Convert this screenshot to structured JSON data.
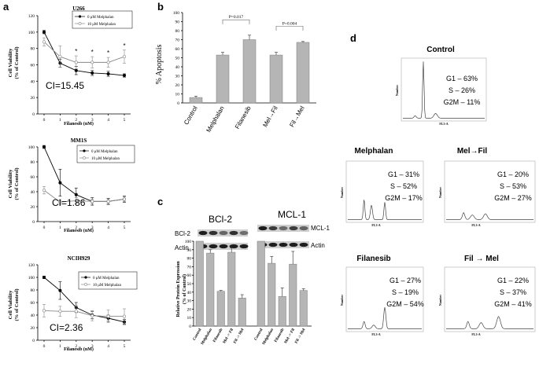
{
  "panels": {
    "a": "a",
    "b": "b",
    "c": "c",
    "d": "d"
  },
  "chart_data": [
    {
      "id": "u266",
      "type": "line",
      "title": "U266",
      "xlabel": "Filanesib (nM)",
      "ylabel": "Cell Viability",
      "ylabel2": "(% of Control)",
      "x": [
        0,
        1,
        2,
        3,
        4,
        5
      ],
      "ylim": [
        0,
        120
      ],
      "yticks": [
        0,
        20,
        40,
        60,
        80,
        100,
        120
      ],
      "series": [
        {
          "name": "0 μM Melphalan",
          "values": [
            100,
            62,
            53,
            50,
            49,
            47
          ],
          "errors": [
            2,
            5,
            5,
            3,
            3,
            2
          ],
          "marker": "filled"
        },
        {
          "name": "10 μM Melphalan",
          "values": [
            88,
            70,
            63,
            63,
            63,
            70
          ],
          "errors": [
            5,
            13,
            8,
            7,
            6,
            8
          ],
          "marker": "open"
        }
      ],
      "significance": [
        2,
        3,
        4,
        5
      ],
      "significance_label": "*",
      "annotation": "CI=15.45"
    },
    {
      "id": "mm1s",
      "type": "line",
      "title": "MM1S",
      "xlabel": "Filanesib (nM)",
      "ylabel": "Cell Viability",
      "ylabel2": "(% of Control)",
      "x": [
        0,
        1,
        2,
        3,
        4,
        5
      ],
      "ylim": [
        0,
        100
      ],
      "yticks": [
        0,
        20,
        40,
        60,
        80,
        100
      ],
      "series": [
        {
          "name": "0 μM Melphalan",
          "values": [
            100,
            52,
            36,
            27,
            27,
            30
          ],
          "errors": [
            2,
            18,
            9,
            5,
            4,
            4
          ],
          "marker": "filled"
        },
        {
          "name": "10 μM Melphalan",
          "values": [
            42,
            26,
            28,
            27,
            27,
            30
          ],
          "errors": [
            5,
            3,
            4,
            3,
            3,
            3
          ],
          "marker": "open"
        }
      ],
      "annotation": "CI=1.86"
    },
    {
      "id": "nci",
      "type": "line",
      "title": "NCIH929",
      "xlabel": "Filanesib (nM)",
      "ylabel": "Cell Viability",
      "ylabel2": "(% of Control)",
      "x": [
        0,
        1,
        2,
        3,
        4,
        5
      ],
      "ylim": [
        0,
        120
      ],
      "yticks": [
        0,
        20,
        40,
        60,
        80,
        100,
        120
      ],
      "series": [
        {
          "name": "0 μM Melphalan",
          "values": [
            100,
            79,
            52,
            40,
            35,
            29
          ],
          "errors": [
            2,
            14,
            8,
            6,
            5,
            4
          ],
          "marker": "filled"
        },
        {
          "name": "10 μM Melphalan",
          "values": [
            47,
            46,
            46,
            39,
            38,
            38
          ],
          "errors": [
            10,
            8,
            10,
            8,
            10,
            12
          ],
          "marker": "open"
        }
      ],
      "annotation": "CI=2.36"
    },
    {
      "id": "apoptosis",
      "type": "bar",
      "ylabel": "% Apoptosis",
      "categories": [
        "Control",
        "Melphalan",
        "Filanesib",
        "Mel→Fil",
        "Fil→Mel"
      ],
      "values": [
        6,
        53,
        70,
        53,
        67
      ],
      "errors": [
        1.5,
        3,
        5,
        3,
        1
      ],
      "ylim": [
        0,
        100
      ],
      "yticks": [
        0,
        10,
        20,
        30,
        40,
        50,
        60,
        70,
        80,
        90,
        100
      ],
      "comparisons": [
        {
          "from": 1,
          "to": 2,
          "label": "P=0.017"
        },
        {
          "from": 3,
          "to": 4,
          "label": "P=0.004"
        }
      ]
    },
    {
      "id": "protein",
      "type": "bar",
      "ylabel": "Relative Protein Expression",
      "ylabel2": "(% of Control)",
      "ylim": [
        0,
        100
      ],
      "yticks": [
        0,
        10,
        20,
        30,
        40,
        50,
        60,
        70,
        80,
        90,
        100
      ],
      "groups": [
        {
          "name": "BCl-2",
          "categories": [
            "Control",
            "Melphalan",
            "Filanesib",
            "Mel -> Fil",
            "Fil -> Mel"
          ],
          "values": [
            100,
            86,
            41,
            87,
            33
          ],
          "errors": [
            0,
            4,
            1,
            5,
            4
          ]
        },
        {
          "name": "MCL-1",
          "categories": [
            "Control",
            "Melphalan",
            "Filanesib",
            "Mel -> Fil",
            "Fil -> Mel"
          ],
          "values": [
            100,
            74,
            35,
            73,
            42
          ],
          "errors": [
            0,
            8,
            10,
            15,
            2
          ]
        }
      ]
    }
  ],
  "blots": {
    "bcl2_title": "BCl-2",
    "mcl1_title": "MCL-1",
    "bcl2_label": "BCl-2",
    "mcl1_label": "MCL-1",
    "actin_left": "Actin",
    "actin_right": "Actin"
  },
  "flow": {
    "axis_label": "FL3-A",
    "y_axis_label": "Number",
    "control": {
      "title": "Control",
      "g1": "G1 – 63%",
      "s": "S – 26%",
      "g2m": "G2M – 11%"
    },
    "melphalan": {
      "title": "Melphalan",
      "g1": "G1 – 31%",
      "s": "S – 52%",
      "g2m": "G2M –  17%"
    },
    "melfil": {
      "title": "Mel→Fil",
      "g1": "G1 – 20%",
      "s": "S – 53%",
      "g2m": "G2M – 27%"
    },
    "filanesib": {
      "title": "Filanesib",
      "g1": "G1 – 27%",
      "s": "S – 19%",
      "g2m": "G2M – 54%"
    },
    "filmel": {
      "title": "Fil → Mel",
      "g1": "G1 – 22%",
      "s": "S – 37%",
      "g2m": "G2M –  41%"
    }
  }
}
